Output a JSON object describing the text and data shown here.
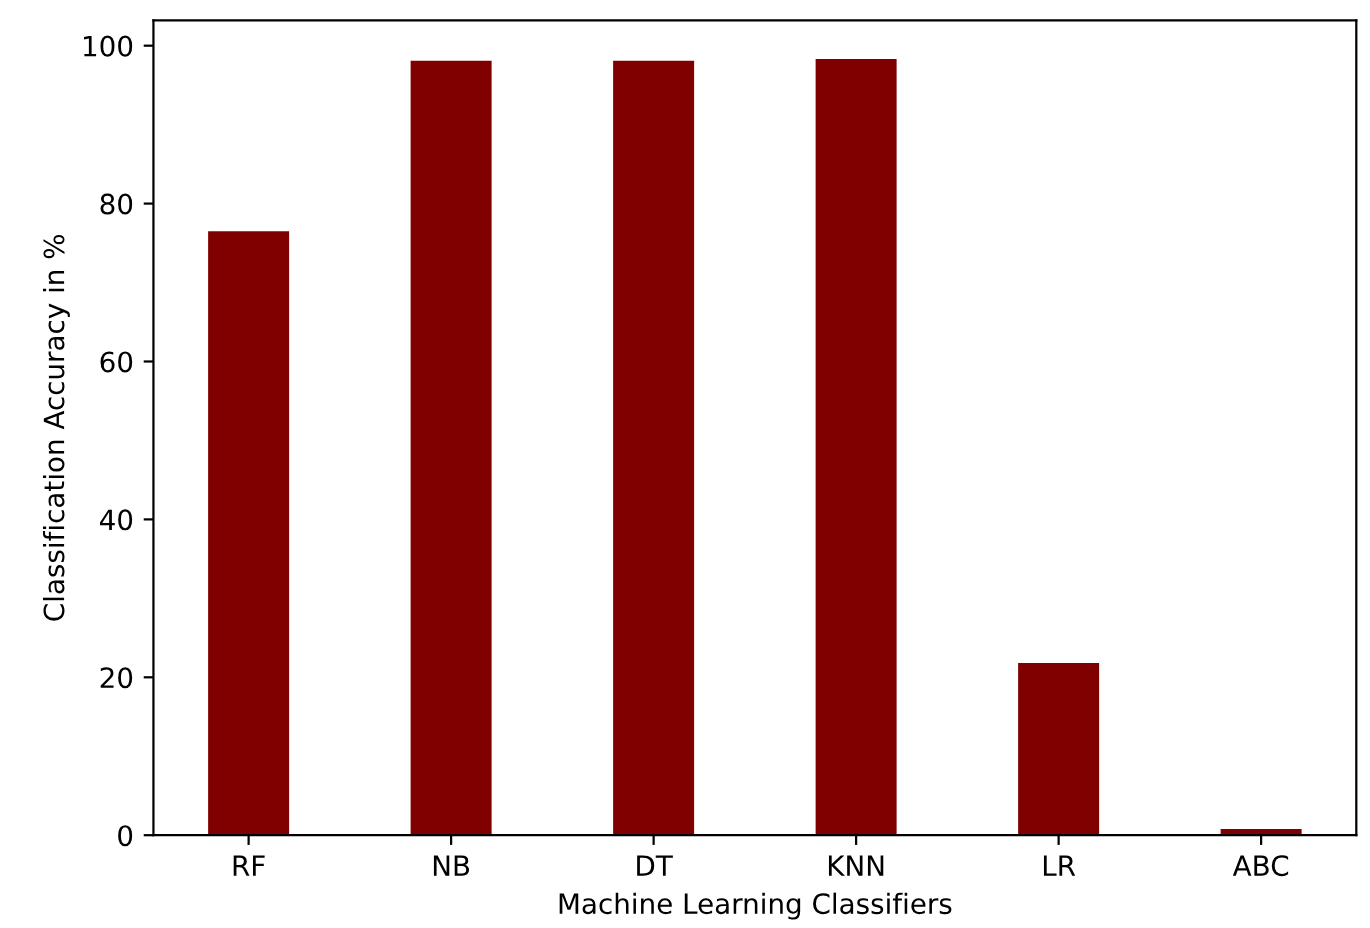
{
  "chart_data": {
    "type": "bar",
    "xlabel": "Machine Learning Classifiers",
    "ylabel": "Classification Accuracy in %",
    "categories": [
      "RF",
      "NB",
      "DT",
      "KNN",
      "LR",
      "ABC"
    ],
    "values": [
      76.5,
      98.1,
      98.1,
      98.3,
      21.8,
      0.8
    ],
    "color": "#800000",
    "ylim": [
      0,
      103.2
    ],
    "yticks": [
      0,
      20,
      40,
      60,
      80,
      100
    ],
    "grid": false
  }
}
